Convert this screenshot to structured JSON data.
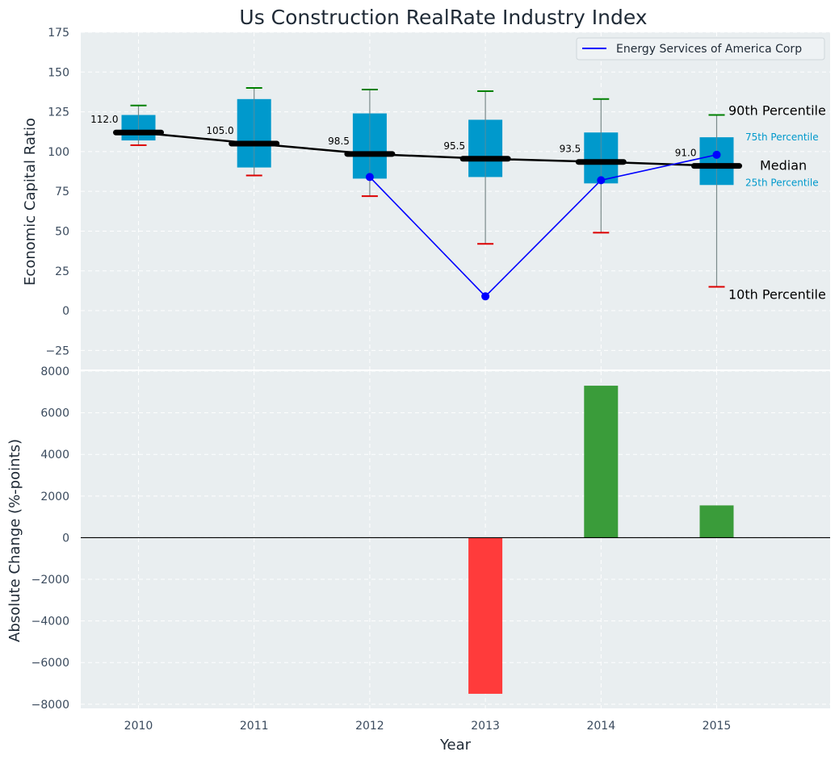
{
  "chart_data": [
    {
      "type": "box",
      "title": "Us Construction RealRate Industry Index",
      "ylabel": "Economic Capital Ratio",
      "ylim": [
        -37,
        175
      ],
      "yticks": [
        "175",
        "150",
        "125",
        "100",
        "75",
        "50",
        "25",
        "0",
        "−25"
      ],
      "ytick_values": [
        175,
        150,
        125,
        100,
        75,
        50,
        25,
        0,
        -25
      ],
      "categories": [
        "2010",
        "2011",
        "2012",
        "2013",
        "2014",
        "2015"
      ],
      "percentile_10": [
        104,
        85,
        72,
        42,
        49,
        15
      ],
      "percentile_25": [
        107,
        90,
        83,
        84,
        80,
        79
      ],
      "median": [
        112.0,
        105.0,
        98.5,
        95.5,
        93.5,
        91.0
      ],
      "median_labels": [
        "112.0",
        "105.0",
        "98.5",
        "95.5",
        "93.5",
        "91.0"
      ],
      "percentile_75": [
        123,
        133,
        124,
        120,
        112,
        109
      ],
      "percentile_90": [
        129,
        140,
        139,
        138,
        133,
        123
      ],
      "series": [
        {
          "name": "Energy Services of America Corp",
          "x": [
            "2012",
            "2013",
            "2014",
            "2015"
          ],
          "values": [
            84,
            9,
            82,
            98
          ]
        }
      ],
      "annotations": {
        "p90": "90th Percentile",
        "p75": "75th Percentile",
        "median": "Median",
        "p25": "25th Percentile",
        "p10": "10th Percentile"
      },
      "legend_position": "top-right",
      "grid": true
    },
    {
      "type": "bar",
      "xlabel": "Year",
      "ylabel": "Absolute Change (%-points)",
      "ylim": [
        -8200,
        8000
      ],
      "yticks": [
        "8000",
        "6000",
        "4000",
        "2000",
        "0",
        "−2000",
        "−4000",
        "−6000",
        "−8000"
      ],
      "ytick_values": [
        8000,
        6000,
        4000,
        2000,
        0,
        -2000,
        -4000,
        -6000,
        -8000
      ],
      "categories": [
        "2010",
        "2011",
        "2012",
        "2013",
        "2014",
        "2015"
      ],
      "values": [
        0,
        0,
        0,
        -7500,
        7300,
        1550
      ],
      "grid": true
    }
  ],
  "colors": {
    "panel_bg": "#e9eef0",
    "box_fill": "#0099cc",
    "whisker": "#7a8a8a",
    "median_line": "#000000",
    "company_line": "#0000ff",
    "p90_cap": "#008000",
    "p10_cap": "#dd0000",
    "bar_positive": "#3a9c3a",
    "bar_negative": "#ff3b3b",
    "annotation_small": "#0099cc"
  }
}
